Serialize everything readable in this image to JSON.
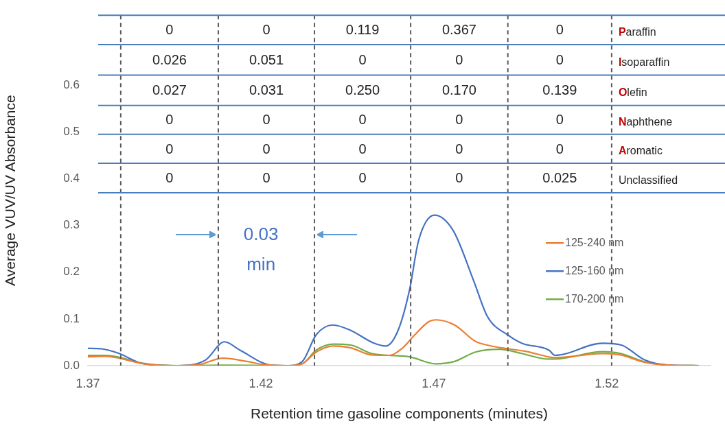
{
  "chart_data": {
    "type": "line",
    "xlabel": "Retention time gasoline components (minutes)",
    "ylabel": "Average VUV/UV Absorbance",
    "xlim": [
      1.37,
      1.55
    ],
    "xticks": [
      1.37,
      1.42,
      1.47,
      1.52
    ],
    "ylim": [
      0,
      0.75
    ],
    "yticks": [
      {
        "value": 0,
        "label": "0.0"
      },
      {
        "value": 0.1,
        "label": "0.1"
      },
      {
        "value": 0.2,
        "label": "0.2"
      },
      {
        "value": 0.3,
        "label": "0.3"
      },
      {
        "value": 0.4,
        "label": "0.4"
      },
      {
        "value": 0.5,
        "label": "0.5"
      },
      {
        "value": 0.6,
        "label": "0.6"
      }
    ],
    "grid": false,
    "legend": "right",
    "marker": "none",
    "line_style": "solid",
    "series": [
      {
        "name": "125-240 nm",
        "color": "#ed7d31",
        "x": [
          1.37,
          1.375,
          1.379,
          1.386,
          1.396,
          1.402,
          1.409,
          1.416,
          1.421,
          1.428,
          1.432,
          1.436,
          1.441,
          1.446,
          1.452,
          1.457,
          1.461,
          1.464,
          1.4685,
          1.4705,
          1.476,
          1.482,
          1.486,
          1.4915,
          1.497,
          1.503,
          1.505,
          1.5188,
          1.524,
          1.531,
          1.538,
          1.5466
        ],
        "values": [
          0.019,
          0.02,
          0.016,
          0.004,
          0,
          0.002,
          0.016,
          0.009,
          0.002,
          0,
          0.004,
          0.029,
          0.042,
          0.038,
          0.023,
          0.022,
          0.038,
          0.062,
          0.094,
          0.098,
          0.087,
          0.052,
          0.043,
          0.036,
          0.03,
          0.019,
          0.017,
          0.026,
          0.023,
          0.007,
          0.001,
          0
        ]
      },
      {
        "name": "125-160 nm",
        "color": "#4472c4",
        "x": [
          1.37,
          1.374,
          1.379,
          1.386,
          1.396,
          1.404,
          1.4095,
          1.414,
          1.423,
          1.428,
          1.432,
          1.436,
          1.4408,
          1.4458,
          1.4527,
          1.4561,
          1.4597,
          1.463,
          1.4656,
          1.4702,
          1.4756,
          1.4815,
          1.4855,
          1.4915,
          1.4954,
          1.5033,
          1.505,
          1.5188,
          1.5242,
          1.531,
          1.538,
          1.5466
        ],
        "values": [
          0.037,
          0.036,
          0.026,
          0.004,
          0,
          0.012,
          0.051,
          0.033,
          0.001,
          0,
          0.009,
          0.066,
          0.087,
          0.076,
          0.048,
          0.042,
          0.076,
          0.163,
          0.268,
          0.322,
          0.289,
          0.182,
          0.105,
          0.065,
          0.048,
          0.033,
          0.022,
          0.048,
          0.044,
          0.012,
          0.001,
          0
        ]
      },
      {
        "name": "170-200 nm",
        "color": "#70ad47",
        "x": [
          1.37,
          1.375,
          1.379,
          1.386,
          1.396,
          1.409,
          1.428,
          1.432,
          1.436,
          1.441,
          1.446,
          1.452,
          1.457,
          1.463,
          1.4705,
          1.476,
          1.482,
          1.489,
          1.4954,
          1.503,
          1.505,
          1.5188,
          1.524,
          1.531,
          1.538,
          1.5466
        ],
        "values": [
          0.022,
          0.022,
          0.018,
          0.005,
          0,
          0.001,
          0,
          0.004,
          0.033,
          0.046,
          0.044,
          0.026,
          0.022,
          0.019,
          0.004,
          0.009,
          0.029,
          0.035,
          0.026,
          0.014,
          0.014,
          0.03,
          0.026,
          0.008,
          0.001,
          0
        ]
      }
    ],
    "ref_lines": [
      {
        "axis": "y",
        "value": 0.75,
        "color": "#4a7ebb",
        "line_style": "solid"
      },
      {
        "axis": "y",
        "value": 0.687,
        "color": "#4a7ebb",
        "line_style": "solid"
      },
      {
        "axis": "y",
        "value": 0.622,
        "color": "#4a7ebb",
        "line_style": "solid"
      },
      {
        "axis": "y",
        "value": 0.557,
        "color": "#4a7ebb",
        "line_style": "solid"
      },
      {
        "axis": "y",
        "value": 0.495,
        "color": "#4a7ebb",
        "line_style": "solid"
      },
      {
        "axis": "y",
        "value": 0.433,
        "color": "#4a7ebb",
        "line_style": "solid"
      },
      {
        "axis": "y",
        "value": 0.37,
        "color": "#4a7ebb",
        "line_style": "solid"
      },
      {
        "axis": "x",
        "value": 1.3795,
        "color": "#595959",
        "line_style": "dashed"
      },
      {
        "axis": "x",
        "value": 1.4077,
        "color": "#595959",
        "line_style": "dashed"
      },
      {
        "axis": "x",
        "value": 1.4355,
        "color": "#595959",
        "line_style": "dashed"
      },
      {
        "axis": "x",
        "value": 1.4633,
        "color": "#595959",
        "line_style": "dashed"
      },
      {
        "axis": "x",
        "value": 1.4914,
        "color": "#595959",
        "line_style": "dashed"
      },
      {
        "axis": "x",
        "value": 1.5214,
        "color": "#595959",
        "line_style": "dashed"
      }
    ],
    "annotations": [
      "0.03 min",
      "0",
      "0",
      "0.119",
      "0.367",
      "0",
      "Paraffin",
      "0.026",
      "0.051",
      "0",
      "0",
      "0",
      "Isoparaffin",
      "0.027",
      "0.031",
      "0.250",
      "0.170",
      "0.139",
      "Olefin",
      "0",
      "0",
      "0",
      "0",
      "0",
      "Naphthene",
      "0",
      "0",
      "0",
      "0",
      "0",
      "Aromatic",
      "0",
      "0",
      "0",
      "0",
      "0.025",
      "Unclassified"
    ]
  }
}
